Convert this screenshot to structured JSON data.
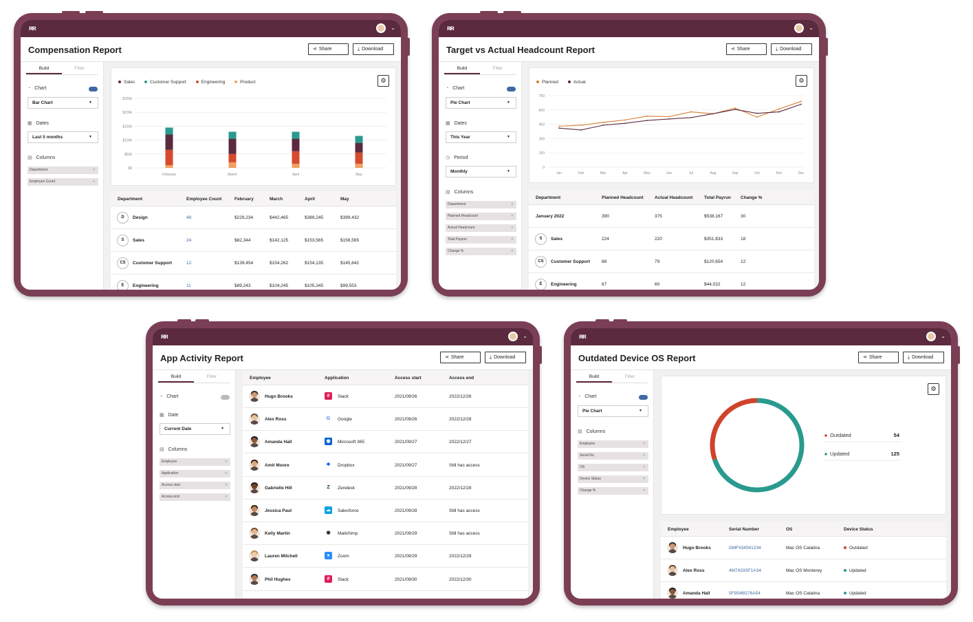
{
  "common": {
    "share": "Share",
    "download": "Download",
    "build_tab": "Build",
    "filter_tab": "Filter",
    "chart_label": "Chart",
    "columns_label": "Columns",
    "dates_label": "Dates",
    "date_label": "Date",
    "period_label": "Period",
    "logo": "ʀʀ"
  },
  "colors": {
    "brand": "#5b2a3e",
    "frame": "#7b3f55",
    "sales": "#5b2a3e",
    "support": "#2a9a8f",
    "engineering": "#d64a2e",
    "product": "#f0a060",
    "planned": "#d87a2a",
    "actual": "#5b2a3e",
    "outdated": "#d0432b",
    "updated": "#2a9a8f",
    "link": "#3f6aa3"
  },
  "comp": {
    "title": "Compensation Report",
    "chart_type": "Bar Chart",
    "date_range": "Last 5 months",
    "columns": [
      "Department",
      "Employee Count"
    ],
    "headers": [
      "Department",
      "Employee Count",
      "February",
      "March",
      "April",
      "May"
    ],
    "rows": [
      {
        "badge": "D",
        "dept": "Design",
        "count": "48",
        "feb": "$229,234",
        "mar": "$442,465",
        "apr": "$389,245",
        "may": "$399,432"
      },
      {
        "badge": "S",
        "dept": "Sales",
        "count": "24",
        "feb": "$82,344",
        "mar": "$142,125",
        "apr": "$153,565",
        "may": "$156,565"
      },
      {
        "badge": "CS",
        "dept": "Customer Support",
        "count": "12",
        "feb": "$139,454",
        "mar": "$154,262",
        "apr": "$154,135",
        "may": "$145,642"
      },
      {
        "badge": "E",
        "dept": "Engineering",
        "count": "11",
        "feb": "$89,243",
        "mar": "$104,245",
        "apr": "$105,345",
        "may": "$99,553"
      }
    ],
    "chart_data": {
      "type": "bar",
      "stacked": true,
      "categories": [
        "February",
        "March",
        "April",
        "May"
      ],
      "series": [
        {
          "name": "Product",
          "values": [
            10000,
            20000,
            15000,
            15000
          ]
        },
        {
          "name": "Engineering",
          "values": [
            55000,
            30000,
            45000,
            40000
          ]
        },
        {
          "name": "Sales",
          "values": [
            55000,
            55000,
            45000,
            35000
          ]
        },
        {
          "name": "Customer Support",
          "values": [
            25000,
            25000,
            25000,
            25000
          ]
        }
      ],
      "ylim": [
        0,
        250000
      ],
      "yticks": [
        "$250k",
        "$200k",
        "$150k",
        "$100k",
        "$50k",
        "$0"
      ],
      "grid": true,
      "legend": "top-left"
    }
  },
  "head": {
    "title": "Target vs Actual Headcount Report",
    "chart_type": "Pie Chart",
    "date_range": "This Year",
    "period": "Monthly",
    "columns": [
      "Department",
      "Planned Headcount",
      "Actual Headcount",
      "Total Payrun",
      "Change %"
    ],
    "headers": [
      "Department",
      "Planned Headcount",
      "Actual Headcount",
      "Total Payrun",
      "Change %"
    ],
    "rows": [
      {
        "badge": "",
        "dept": "January 2022",
        "planned": "390",
        "actual": "375",
        "payrun": "$538,167",
        "change": "30"
      },
      {
        "badge": "S",
        "dept": "Sales",
        "planned": "224",
        "actual": "220",
        "payrun": "$351,833",
        "change": "18"
      },
      {
        "badge": "CS",
        "dept": "Customer Support",
        "planned": "88",
        "actual": "79",
        "payrun": "$120,654",
        "change": "12"
      },
      {
        "badge": "E",
        "dept": "Engineering",
        "planned": "67",
        "actual": "60",
        "payrun": "$44,022",
        "change": "12"
      }
    ],
    "chart_data": {
      "type": "line",
      "categories": [
        "Jan",
        "Feb",
        "Mar",
        "Apr",
        "May",
        "Jun",
        "Jul",
        "Aug",
        "Sep",
        "Oct",
        "Nov",
        "Dec"
      ],
      "series": [
        {
          "name": "Planned",
          "values": [
            430,
            440,
            470,
            495,
            535,
            530,
            580,
            560,
            620,
            525,
            610,
            690
          ]
        },
        {
          "name": "Actual",
          "values": [
            410,
            390,
            440,
            460,
            490,
            505,
            520,
            560,
            605,
            565,
            580,
            660
          ]
        }
      ],
      "ylim": [
        0,
        750
      ],
      "yticks": [
        "750",
        "600",
        "450",
        "300",
        "150",
        "0"
      ],
      "grid": true,
      "legend": "top-left"
    }
  },
  "app": {
    "title": "App Activity Report",
    "date_value": "Current Date",
    "columns": [
      "Employee",
      "Application",
      "Access start",
      "Access end"
    ],
    "headers": [
      "Employee",
      "Application",
      "Access start",
      "Access end"
    ],
    "rows": [
      {
        "name": "Hugo Brooks",
        "app": "Slack",
        "start": "2021/09/26",
        "end": "2022/12/26"
      },
      {
        "name": "Alex Ross",
        "app": "Google",
        "start": "2021/09/26",
        "end": "2022/12/28"
      },
      {
        "name": "Amanda Hall",
        "app": "Microsoft 365",
        "start": "2021/09/27",
        "end": "2022/12/27"
      },
      {
        "name": "Amit Moore",
        "app": "Dropbox",
        "start": "2021/09/27",
        "end": "Still has access"
      },
      {
        "name": "Gabrielle Hill",
        "app": "Zendesk",
        "start": "2021/09/28",
        "end": "2022/12/28"
      },
      {
        "name": "Jessica Paul",
        "app": "Salesforce",
        "start": "2021/09/28",
        "end": "Still has access"
      },
      {
        "name": "Kelly Martin",
        "app": "Mailchimp",
        "start": "2021/09/29",
        "end": "Still has access"
      },
      {
        "name": "Lauren Mitchell",
        "app": "Zoom",
        "start": "2021/09/29",
        "end": "2022/12/29"
      },
      {
        "name": "Phil Hughes",
        "app": "Slack",
        "start": "2021/09/30",
        "end": "2022/12/30"
      }
    ]
  },
  "os": {
    "title": "Outdated Device OS Report",
    "chart_type": "Pie Chart",
    "columns": [
      "Employee",
      "Serial No.",
      "OS",
      "Device Status",
      "Change %"
    ],
    "headers": [
      "Employee",
      "Serial Number",
      "OS",
      "Device Status"
    ],
    "rows": [
      {
        "name": "Hugo Brooks",
        "serial": "DMF434561234",
        "os": "Mac OS Catalina",
        "status": "Outdated"
      },
      {
        "name": "Alex Ross",
        "serial": "4M7433SF1A34",
        "os": "Mac OS Monterey",
        "status": "Updated"
      },
      {
        "name": "Amanda Hall",
        "serial": "5F9546G76A54",
        "os": "Mac OS Catalina",
        "status": "Updated"
      }
    ],
    "chart_data": {
      "type": "pie",
      "donut": true,
      "labels": [
        "Outdated",
        "Updated"
      ],
      "values": [
        54,
        125
      ],
      "legend": "right"
    }
  }
}
